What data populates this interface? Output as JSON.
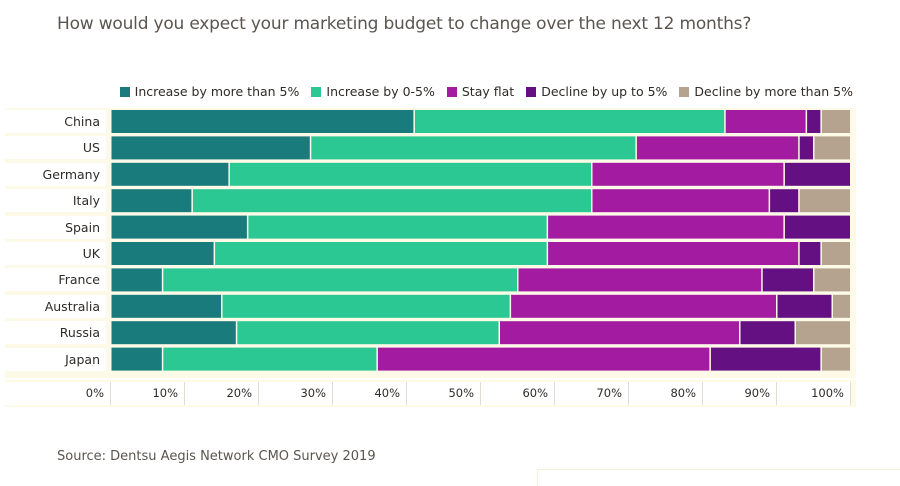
{
  "title": "How would you expect your marketing budget to change over the next 12 months?",
  "source": "Source: Dentsu Aegis Network CMO Survey 2019",
  "chart_data": {
    "type": "bar",
    "orientation": "horizontal",
    "stacked": true,
    "normalized": true,
    "title": "How would you expect your marketing budget to change over the next 12 months?",
    "xlabel": "",
    "ylabel": "",
    "xlim": [
      0,
      100
    ],
    "x_ticks": [
      "0%",
      "10%",
      "20%",
      "30%",
      "40%",
      "50%",
      "60%",
      "70%",
      "80%",
      "90%",
      "100%"
    ],
    "legend_position": "top-right",
    "categories": [
      "China",
      "US",
      "Germany",
      "Italy",
      "Spain",
      "UK",
      "France",
      "Australia",
      "Russia",
      "Japan"
    ],
    "series": [
      {
        "name": "Increase by more than 5%",
        "color": "#1a7b7d",
        "values": [
          41,
          27,
          16,
          11,
          18.5,
          14,
          7,
          15,
          17,
          7
        ]
      },
      {
        "name": "Increase by 0-5%",
        "color": "#2bc893",
        "values": [
          42,
          44,
          49,
          54,
          40.5,
          45,
          48,
          39,
          35.5,
          29
        ]
      },
      {
        "name": "Stay flat",
        "color": "#a31ba1",
        "values": [
          11,
          22,
          26,
          24,
          32,
          34,
          33,
          36,
          32.5,
          45
        ]
      },
      {
        "name": "Decline by up to 5%",
        "color": "#640f82",
        "values": [
          2,
          2,
          9,
          4,
          9,
          3,
          7,
          7.5,
          7.5,
          15
        ]
      },
      {
        "name": "Decline by more than 5%",
        "color": "#b5a38f",
        "values": [
          4,
          5,
          0,
          7,
          0,
          4,
          5,
          2.5,
          7.5,
          4
        ]
      }
    ]
  }
}
